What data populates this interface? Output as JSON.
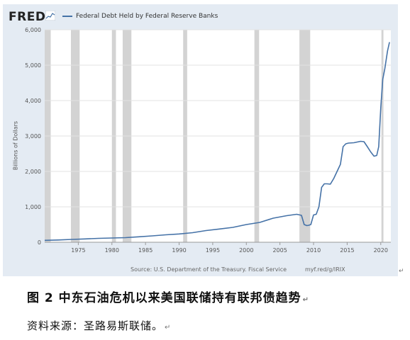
{
  "header": {
    "logo_text": "FRED",
    "legend_label": "Federal Debt Held by Federal Reserve Banks"
  },
  "chart_data": {
    "type": "line",
    "title": "",
    "xlabel": "",
    "ylabel": "Billions of Dollars",
    "xlim": [
      1970,
      2021.5
    ],
    "ylim": [
      0,
      6000
    ],
    "y_ticks": [
      0,
      1000,
      2000,
      3000,
      4000,
      5000,
      6000
    ],
    "y_tick_labels": [
      "0",
      "1,000",
      "2,000",
      "3,000",
      "4,000",
      "5,000",
      "6,000"
    ],
    "x_ticks": [
      1975,
      1980,
      1985,
      1990,
      1995,
      2000,
      2005,
      2010,
      2015,
      2020
    ],
    "x_tick_labels": [
      "1975",
      "1980",
      "1985",
      "1990",
      "1995",
      "2000",
      "2005",
      "2010",
      "2015",
      "2020"
    ],
    "grid": true,
    "legend_position": "top-left",
    "line_color": "#4572a7",
    "recession_color": "#d3d3d3",
    "recessions": [
      [
        1969.9,
        1970.9
      ],
      [
        1973.9,
        1975.2
      ],
      [
        1980.0,
        1980.6
      ],
      [
        1981.6,
        1982.9
      ],
      [
        1990.6,
        1991.2
      ],
      [
        2001.2,
        2001.9
      ],
      [
        2007.9,
        2009.5
      ],
      [
        2020.1,
        2020.4
      ]
    ],
    "series": [
      {
        "name": "Federal Debt Held by Federal Reserve Banks",
        "x": [
          1970,
          1972,
          1974,
          1976,
          1978,
          1980,
          1982,
          1984,
          1986,
          1988,
          1990,
          1992,
          1994,
          1996,
          1998,
          2000,
          2002,
          2004,
          2006,
          2007.5,
          2008.2,
          2008.6,
          2009.0,
          2009.3,
          2009.6,
          2010.0,
          2010.4,
          2010.8,
          2011.2,
          2011.6,
          2012.0,
          2012.5,
          2013.0,
          2013.5,
          2014.0,
          2014.4,
          2014.8,
          2015.2,
          2016.0,
          2017.0,
          2017.5,
          2018.0,
          2018.5,
          2019.0,
          2019.4,
          2019.7,
          2020.0,
          2020.3,
          2020.6,
          2021.0,
          2021.3
        ],
        "values": [
          55,
          65,
          80,
          95,
          110,
          120,
          130,
          155,
          180,
          210,
          235,
          270,
          330,
          375,
          420,
          500,
          560,
          680,
          750,
          790,
          760,
          500,
          470,
          480,
          500,
          770,
          790,
          1000,
          1550,
          1650,
          1650,
          1640,
          1800,
          2000,
          2200,
          2700,
          2780,
          2800,
          2810,
          2850,
          2840,
          2700,
          2550,
          2430,
          2450,
          2700,
          3800,
          4600,
          4900,
          5400,
          5650
        ]
      }
    ]
  },
  "footer": {
    "source": "Source: U.S. Department of the Treasury. Fiscal Service",
    "url": "myf.red/g/IRIX"
  },
  "caption": "图 2 中东石油危机以来美国联储持有联邦债趋势",
  "source_note": "资料来源：圣路易斯联储。"
}
